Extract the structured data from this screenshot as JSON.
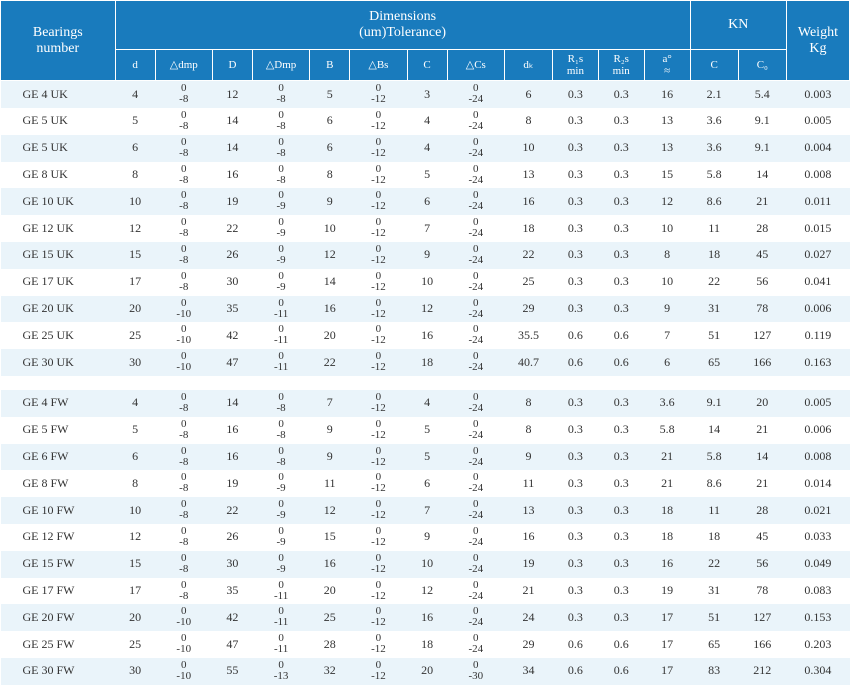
{
  "header": {
    "bearings": "Bearings\nnumber",
    "dimensions": "Dimensions\n(um)Tolerance)",
    "kn": "KN",
    "weight": "Weight\nKg",
    "cols": {
      "d": "d",
      "ddmp": "△dmp",
      "D": "D",
      "dDmp": "△Dmp",
      "B": "B",
      "dBs": "△Bs",
      "C": "C",
      "dCs": "△Cs",
      "dk": "dₖ",
      "r1s": "R₁s\nmin",
      "r2s": "R₂s\nmin",
      "a": "a°\n≈",
      "Ck": "C",
      "C0": "C₀"
    }
  },
  "rows": [
    {
      "name": "GE 4 UK",
      "d": 4,
      "ddmp": [
        "0",
        "-8"
      ],
      "D": 12,
      "dDmp": [
        "0",
        "-8"
      ],
      "B": 5,
      "dBs": [
        "0",
        "-12"
      ],
      "C": 3,
      "dCs": [
        "0",
        "-24"
      ],
      "dk": 6,
      "r1s": 0.3,
      "r2s": 0.3,
      "a": 16,
      "Ck": 2.1,
      "C0": 5.4,
      "w": "0.003"
    },
    {
      "name": "GE 5 UK",
      "d": 5,
      "ddmp": [
        "0",
        "-8"
      ],
      "D": 14,
      "dDmp": [
        "0",
        "-8"
      ],
      "B": 6,
      "dBs": [
        "0",
        "-12"
      ],
      "C": 4,
      "dCs": [
        "0",
        "-24"
      ],
      "dk": 8,
      "r1s": 0.3,
      "r2s": 0.3,
      "a": 13,
      "Ck": 3.6,
      "C0": 9.1,
      "w": "0.005"
    },
    {
      "name": "GE 5 UK",
      "d": 6,
      "ddmp": [
        "0",
        "-8"
      ],
      "D": 14,
      "dDmp": [
        "0",
        "-8"
      ],
      "B": 6,
      "dBs": [
        "0",
        "-12"
      ],
      "C": 4,
      "dCs": [
        "0",
        "-24"
      ],
      "dk": 10,
      "r1s": 0.3,
      "r2s": 0.3,
      "a": 13,
      "Ck": 3.6,
      "C0": 9.1,
      "w": "0.004"
    },
    {
      "name": "GE 8 UK",
      "d": 8,
      "ddmp": [
        "0",
        "-8"
      ],
      "D": 16,
      "dDmp": [
        "0",
        "-8"
      ],
      "B": 8,
      "dBs": [
        "0",
        "-12"
      ],
      "C": 5,
      "dCs": [
        "0",
        "-24"
      ],
      "dk": 13,
      "r1s": 0.3,
      "r2s": 0.3,
      "a": 15,
      "Ck": 5.8,
      "C0": 14,
      "w": "0.008"
    },
    {
      "name": "GE 10 UK",
      "d": 10,
      "ddmp": [
        "0",
        "-8"
      ],
      "D": 19,
      "dDmp": [
        "0",
        "-9"
      ],
      "B": 9,
      "dBs": [
        "0",
        "-12"
      ],
      "C": 6,
      "dCs": [
        "0",
        "-24"
      ],
      "dk": 16,
      "r1s": 0.3,
      "r2s": 0.3,
      "a": 12,
      "Ck": 8.6,
      "C0": 21,
      "w": "0.011"
    },
    {
      "name": "GE 12 UK",
      "d": 12,
      "ddmp": [
        "0",
        "-8"
      ],
      "D": 22,
      "dDmp": [
        "0",
        "-9"
      ],
      "B": 10,
      "dBs": [
        "0",
        "-12"
      ],
      "C": 7,
      "dCs": [
        "0",
        "-24"
      ],
      "dk": 18,
      "r1s": 0.3,
      "r2s": 0.3,
      "a": 10,
      "Ck": 11,
      "C0": 28,
      "w": "0.015"
    },
    {
      "name": "GE 15 UK",
      "d": 15,
      "ddmp": [
        "0",
        "-8"
      ],
      "D": 26,
      "dDmp": [
        "0",
        "-9"
      ],
      "B": 12,
      "dBs": [
        "0",
        "-12"
      ],
      "C": 9,
      "dCs": [
        "0",
        "-24"
      ],
      "dk": 22,
      "r1s": 0.3,
      "r2s": 0.3,
      "a": 8,
      "Ck": 18,
      "C0": 45,
      "w": "0.027"
    },
    {
      "name": "GE 17 UK",
      "d": 17,
      "ddmp": [
        "0",
        "-8"
      ],
      "D": 30,
      "dDmp": [
        "0",
        "-9"
      ],
      "B": 14,
      "dBs": [
        "0",
        "-12"
      ],
      "C": 10,
      "dCs": [
        "0",
        "-24"
      ],
      "dk": 25,
      "r1s": 0.3,
      "r2s": 0.3,
      "a": 10,
      "Ck": 22,
      "C0": 56,
      "w": "0.041"
    },
    {
      "name": "GE 20 UK",
      "d": 20,
      "ddmp": [
        "0",
        "-10"
      ],
      "D": 35,
      "dDmp": [
        "0",
        "-11"
      ],
      "B": 16,
      "dBs": [
        "0",
        "-12"
      ],
      "C": 12,
      "dCs": [
        "0",
        "-24"
      ],
      "dk": 29,
      "r1s": 0.3,
      "r2s": 0.3,
      "a": 9,
      "Ck": 31,
      "C0": 78,
      "w": "0.006"
    },
    {
      "name": "GE 25 UK",
      "d": 25,
      "ddmp": [
        "0",
        "-10"
      ],
      "D": 42,
      "dDmp": [
        "0",
        "-11"
      ],
      "B": 20,
      "dBs": [
        "0",
        "-12"
      ],
      "C": 16,
      "dCs": [
        "0",
        "-24"
      ],
      "dk": 35.5,
      "r1s": 0.6,
      "r2s": 0.6,
      "a": 7,
      "Ck": 51,
      "C0": 127,
      "w": "0.119"
    },
    {
      "name": "GE 30 UK",
      "d": 30,
      "ddmp": [
        "0",
        "-10"
      ],
      "D": 47,
      "dDmp": [
        "0",
        "-11"
      ],
      "B": 22,
      "dBs": [
        "0",
        "-12"
      ],
      "C": 18,
      "dCs": [
        "0",
        "-24"
      ],
      "dk": 40.7,
      "r1s": 0.6,
      "r2s": 0.6,
      "a": 6,
      "Ck": 65,
      "C0": 166,
      "w": "0.163"
    },
    {
      "gap": true
    },
    {
      "name": "GE 4 FW",
      "d": 4,
      "ddmp": [
        "0",
        "-8"
      ],
      "D": 14,
      "dDmp": [
        "0",
        "-8"
      ],
      "B": 7,
      "dBs": [
        "0",
        "-12"
      ],
      "C": 4,
      "dCs": [
        "0",
        "-24"
      ],
      "dk": 8,
      "r1s": 0.3,
      "r2s": 0.3,
      "a": 3.6,
      "Ck": 9.1,
      "C0": 20,
      "w": "0.005"
    },
    {
      "name": "GE 5 FW",
      "d": 5,
      "ddmp": [
        "0",
        "-8"
      ],
      "D": 16,
      "dDmp": [
        "0",
        "-8"
      ],
      "B": 9,
      "dBs": [
        "0",
        "-12"
      ],
      "C": 5,
      "dCs": [
        "0",
        "-24"
      ],
      "dk": 8,
      "r1s": 0.3,
      "r2s": 0.3,
      "a": 5.8,
      "Ck": 14,
      "C0": 21,
      "w": "0.006"
    },
    {
      "name": "GE 6 FW",
      "d": 6,
      "ddmp": [
        "0",
        "-8"
      ],
      "D": 16,
      "dDmp": [
        "0",
        "-8"
      ],
      "B": 9,
      "dBs": [
        "0",
        "-12"
      ],
      "C": 5,
      "dCs": [
        "0",
        "-24"
      ],
      "dk": 9,
      "r1s": 0.3,
      "r2s": 0.3,
      "a": 21,
      "Ck": 5.8,
      "C0": 14,
      "w": "0.008"
    },
    {
      "name": "GE 8 FW",
      "d": 8,
      "ddmp": [
        "0",
        "-8"
      ],
      "D": 19,
      "dDmp": [
        "0",
        "-9"
      ],
      "B": 11,
      "dBs": [
        "0",
        "-12"
      ],
      "C": 6,
      "dCs": [
        "0",
        "-24"
      ],
      "dk": 11,
      "r1s": 0.3,
      "r2s": 0.3,
      "a": 21,
      "Ck": 8.6,
      "C0": 21,
      "w": "0.014"
    },
    {
      "name": "GE 10 FW",
      "d": 10,
      "ddmp": [
        "0",
        "-8"
      ],
      "D": 22,
      "dDmp": [
        "0",
        "-9"
      ],
      "B": 12,
      "dBs": [
        "0",
        "-12"
      ],
      "C": 7,
      "dCs": [
        "0",
        "-24"
      ],
      "dk": 13,
      "r1s": 0.3,
      "r2s": 0.3,
      "a": 18,
      "Ck": 11,
      "C0": 28,
      "w": "0.021"
    },
    {
      "name": "GE 12 FW",
      "d": 12,
      "ddmp": [
        "0",
        "-8"
      ],
      "D": 26,
      "dDmp": [
        "0",
        "-9"
      ],
      "B": 15,
      "dBs": [
        "0",
        "-12"
      ],
      "C": 9,
      "dCs": [
        "0",
        "-24"
      ],
      "dk": 16,
      "r1s": 0.3,
      "r2s": 0.3,
      "a": 18,
      "Ck": 18,
      "C0": 45,
      "w": "0.033"
    },
    {
      "name": "GE 15 FW",
      "d": 15,
      "ddmp": [
        "0",
        "-8"
      ],
      "D": 30,
      "dDmp": [
        "0",
        "-9"
      ],
      "B": 16,
      "dBs": [
        "0",
        "-12"
      ],
      "C": 10,
      "dCs": [
        "0",
        "-24"
      ],
      "dk": 19,
      "r1s": 0.3,
      "r2s": 0.3,
      "a": 16,
      "Ck": 22,
      "C0": 56,
      "w": "0.049"
    },
    {
      "name": "GE 17 FW",
      "d": 17,
      "ddmp": [
        "0",
        "-8"
      ],
      "D": 35,
      "dDmp": [
        "0",
        "-11"
      ],
      "B": 20,
      "dBs": [
        "0",
        "-12"
      ],
      "C": 12,
      "dCs": [
        "0",
        "-24"
      ],
      "dk": 21,
      "r1s": 0.3,
      "r2s": 0.3,
      "a": 19,
      "Ck": 31,
      "C0": 78,
      "w": "0.083"
    },
    {
      "name": "GE 20 FW",
      "d": 20,
      "ddmp": [
        "0",
        "-10"
      ],
      "D": 42,
      "dDmp": [
        "0",
        "-11"
      ],
      "B": 25,
      "dBs": [
        "0",
        "-12"
      ],
      "C": 16,
      "dCs": [
        "0",
        "-24"
      ],
      "dk": 24,
      "r1s": 0.3,
      "r2s": 0.3,
      "a": 17,
      "Ck": 51,
      "C0": 127,
      "w": "0.153"
    },
    {
      "name": "GE 25 FW",
      "d": 25,
      "ddmp": [
        "0",
        "-10"
      ],
      "D": 47,
      "dDmp": [
        "0",
        "-11"
      ],
      "B": 28,
      "dBs": [
        "0",
        "-12"
      ],
      "C": 18,
      "dCs": [
        "0",
        "-24"
      ],
      "dk": 29,
      "r1s": 0.6,
      "r2s": 0.6,
      "a": 17,
      "Ck": 65,
      "C0": 166,
      "w": "0.203"
    },
    {
      "name": "GE 30 FW",
      "d": 30,
      "ddmp": [
        "0",
        "-10"
      ],
      "D": 55,
      "dDmp": [
        "0",
        "-13"
      ],
      "B": 32,
      "dBs": [
        "0",
        "-12"
      ],
      "C": 20,
      "dCs": [
        "0",
        "-30"
      ],
      "dk": 34,
      "r1s": 0.6,
      "r2s": 0.6,
      "a": 17,
      "Ck": 83,
      "C0": 212,
      "w": "0.304"
    }
  ],
  "colors": {
    "header_bg": "#197bbd",
    "even_row": "#eaf4fa",
    "odd_row": "#ffffff"
  }
}
